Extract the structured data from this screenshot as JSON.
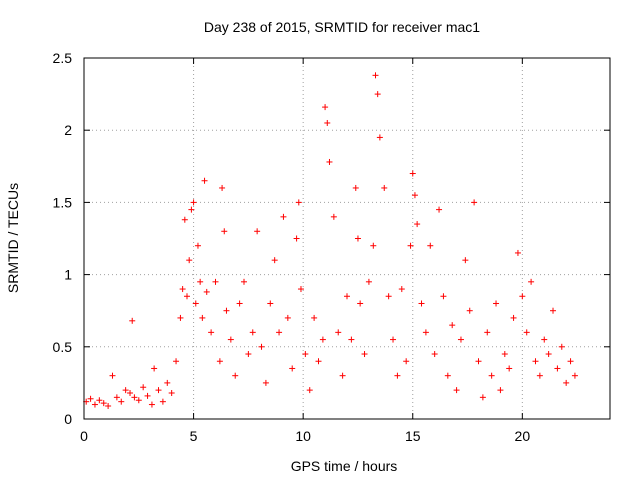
{
  "chart_data": {
    "type": "scatter",
    "title": "Day 238 of 2015, SRMTID for receiver mac1",
    "xlabel": "GPS time / hours",
    "ylabel": "SRMTID / TECUs",
    "xlim": [
      0,
      24
    ],
    "ylim": [
      0,
      2.5
    ],
    "x_ticks": [
      0,
      5,
      10,
      15,
      20
    ],
    "x_tick_labels": [
      "0",
      "5",
      "10",
      "15",
      "20"
    ],
    "y_ticks": [
      0,
      0.5,
      1,
      1.5,
      2,
      2.5
    ],
    "y_tick_labels": [
      "0",
      "0.5",
      "1",
      "1.5",
      "2",
      "2.5"
    ],
    "grid": true,
    "marker": "+",
    "series": [
      {
        "name": "SRMTID",
        "color": "#ff0000",
        "x": [
          0.1,
          0.3,
          0.5,
          0.7,
          0.9,
          1.1,
          1.3,
          1.5,
          1.7,
          1.9,
          2.1,
          2.2,
          2.3,
          2.5,
          2.7,
          2.9,
          3.1,
          3.2,
          3.4,
          3.6,
          3.8,
          4.0,
          4.2,
          4.4,
          4.5,
          4.6,
          4.7,
          4.8,
          4.9,
          5.0,
          5.1,
          5.2,
          5.3,
          5.4,
          5.5,
          5.6,
          5.8,
          6.0,
          6.2,
          6.3,
          6.4,
          6.5,
          6.7,
          6.9,
          7.1,
          7.3,
          7.5,
          7.7,
          7.9,
          8.1,
          8.3,
          8.5,
          8.7,
          8.9,
          9.1,
          9.3,
          9.5,
          9.7,
          9.8,
          9.9,
          10.1,
          10.3,
          10.5,
          10.7,
          10.9,
          11.0,
          11.1,
          11.2,
          11.4,
          11.6,
          11.8,
          12.0,
          12.2,
          12.4,
          12.5,
          12.6,
          12.8,
          13.0,
          13.2,
          13.3,
          13.4,
          13.5,
          13.7,
          13.9,
          14.1,
          14.3,
          14.5,
          14.7,
          14.9,
          15.0,
          15.1,
          15.2,
          15.4,
          15.6,
          15.8,
          16.0,
          16.2,
          16.4,
          16.6,
          16.8,
          17.0,
          17.2,
          17.4,
          17.6,
          17.8,
          18.0,
          18.2,
          18.4,
          18.6,
          18.8,
          19.0,
          19.2,
          19.4,
          19.6,
          19.8,
          20.0,
          20.2,
          20.4,
          20.6,
          20.8,
          21.0,
          21.2,
          21.4,
          21.6,
          21.8,
          22.0,
          22.2,
          22.4
        ],
        "y": [
          0.12,
          0.14,
          0.1,
          0.13,
          0.11,
          0.09,
          0.3,
          0.15,
          0.12,
          0.2,
          0.18,
          0.68,
          0.15,
          0.13,
          0.22,
          0.16,
          0.1,
          0.35,
          0.2,
          0.12,
          0.25,
          0.18,
          0.4,
          0.7,
          0.9,
          1.38,
          0.85,
          1.1,
          1.45,
          1.5,
          0.8,
          1.2,
          0.95,
          0.7,
          1.65,
          0.88,
          0.6,
          0.95,
          0.4,
          1.6,
          1.3,
          0.75,
          0.55,
          0.3,
          0.8,
          0.95,
          0.45,
          0.6,
          1.3,
          0.5,
          0.25,
          0.8,
          1.1,
          0.6,
          1.4,
          0.7,
          0.35,
          1.25,
          1.5,
          0.9,
          0.45,
          0.2,
          0.7,
          0.4,
          0.55,
          2.16,
          2.05,
          1.78,
          1.4,
          0.6,
          0.3,
          0.85,
          0.55,
          1.6,
          1.25,
          0.8,
          0.45,
          0.95,
          1.2,
          2.38,
          2.25,
          1.95,
          1.6,
          0.85,
          0.55,
          0.3,
          0.9,
          0.4,
          1.2,
          1.7,
          1.55,
          1.35,
          0.8,
          0.6,
          1.2,
          0.45,
          1.45,
          0.85,
          0.3,
          0.65,
          0.2,
          0.55,
          1.1,
          0.75,
          1.5,
          0.4,
          0.15,
          0.6,
          0.3,
          0.8,
          0.2,
          0.45,
          0.35,
          0.7,
          1.15,
          0.85,
          0.6,
          0.95,
          0.4,
          0.3,
          0.55,
          0.45,
          0.75,
          0.35,
          0.5,
          0.25,
          0.4,
          0.3
        ]
      }
    ]
  }
}
